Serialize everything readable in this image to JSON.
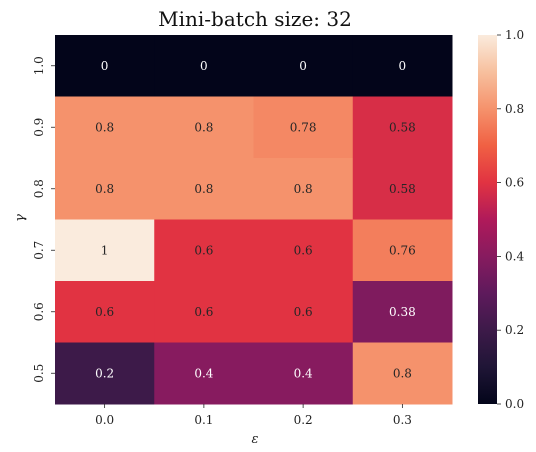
{
  "chart_data": {
    "type": "heatmap",
    "title": "Mini-batch size: 32",
    "xlabel": "ε",
    "ylabel": "γ",
    "x_categories": [
      "0.0",
      "0.1",
      "0.2",
      "0.3"
    ],
    "y_categories": [
      "1.0",
      "0.9",
      "0.8",
      "0.7",
      "0.6",
      "0.5"
    ],
    "values": [
      [
        0,
        0,
        0,
        0
      ],
      [
        0.8,
        0.8,
        0.78,
        0.58
      ],
      [
        0.8,
        0.8,
        0.8,
        0.58
      ],
      [
        1,
        0.6,
        0.6,
        0.76
      ],
      [
        0.6,
        0.6,
        0.6,
        0.38
      ],
      [
        0.2,
        0.4,
        0.4,
        0.8
      ]
    ],
    "cell_labels": [
      [
        "0",
        "0",
        "0",
        "0"
      ],
      [
        "0.8",
        "0.8",
        "0.78",
        "0.58"
      ],
      [
        "0.8",
        "0.8",
        "0.8",
        "0.58"
      ],
      [
        "1",
        "0.6",
        "0.6",
        "0.76"
      ],
      [
        "0.6",
        "0.6",
        "0.6",
        "0.38"
      ],
      [
        "0.2",
        "0.4",
        "0.4",
        "0.8"
      ]
    ],
    "colorbar": {
      "range": [
        0.0,
        1.0
      ],
      "ticks": [
        "0.0",
        "0.2",
        "0.4",
        "0.6",
        "0.8",
        "1.0"
      ],
      "colormap": "rocket"
    }
  }
}
